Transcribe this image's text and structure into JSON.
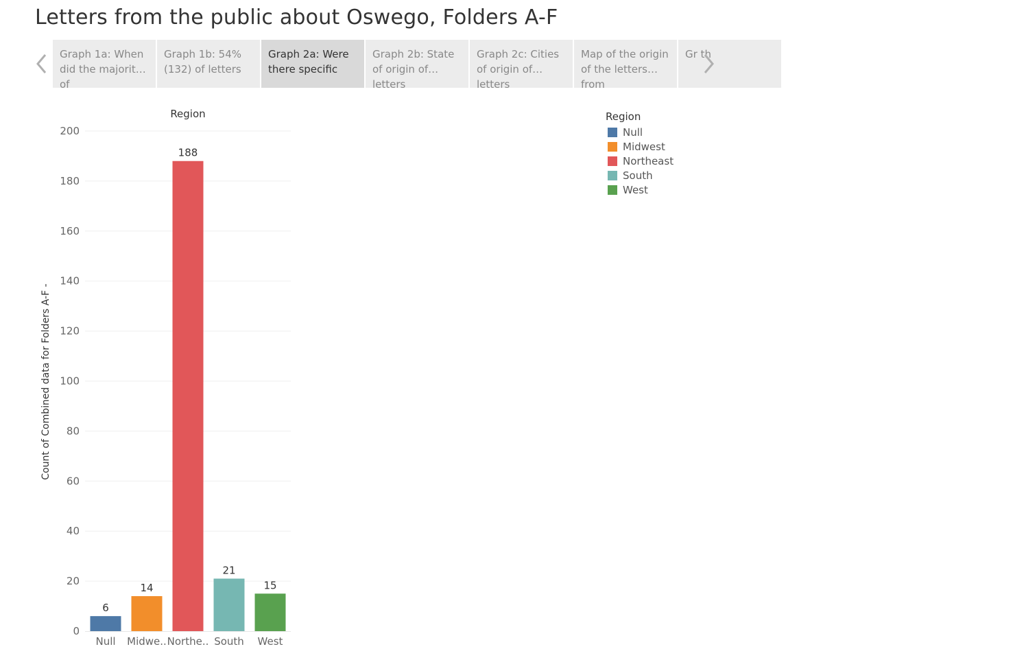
{
  "dashboard": {
    "title": "Letters from the public about Oswego, Folders A-F"
  },
  "tabs": [
    {
      "label": "Graph 1a: When did the majority of",
      "active": false
    },
    {
      "label": "Graph 1b: 54% (132) of letters",
      "active": false
    },
    {
      "label": "Graph 2a: Were there specific",
      "active": true
    },
    {
      "label": "Graph 2b: State of origin of letters",
      "active": false
    },
    {
      "label": "Graph 2c: Cities of origin of letters",
      "active": false
    },
    {
      "label": "Map of the origin of the letters from",
      "active": false
    },
    {
      "label": "Gr th",
      "active": false
    }
  ],
  "nav": {
    "prev_icon": "chevron-left-icon",
    "next_icon": "chevron-right-icon"
  },
  "legend": {
    "title": "Region",
    "items": [
      {
        "label": "Null",
        "color": "#4e79a7"
      },
      {
        "label": "Midwest",
        "color": "#f28e2b"
      },
      {
        "label": "Northeast",
        "color": "#e15759"
      },
      {
        "label": "South",
        "color": "#76b7b2"
      },
      {
        "label": "West",
        "color": "#59a14f"
      }
    ]
  },
  "chart_data": {
    "type": "bar",
    "title": "Region",
    "ylabel": "Count of Combined data for Folders A-F -",
    "xlabel": "",
    "categories": [
      "Null",
      "Midwe..",
      "Northe..",
      "South",
      "West"
    ],
    "values": [
      6,
      14,
      188,
      21,
      15
    ],
    "colors": [
      "#4e79a7",
      "#f28e2b",
      "#e15759",
      "#76b7b2",
      "#59a14f"
    ],
    "ylim": [
      0,
      200
    ],
    "yticks": [
      0,
      20,
      40,
      60,
      80,
      100,
      120,
      140,
      160,
      180,
      200
    ],
    "grid": true,
    "data_labels": true,
    "legend_position": "top-right"
  }
}
